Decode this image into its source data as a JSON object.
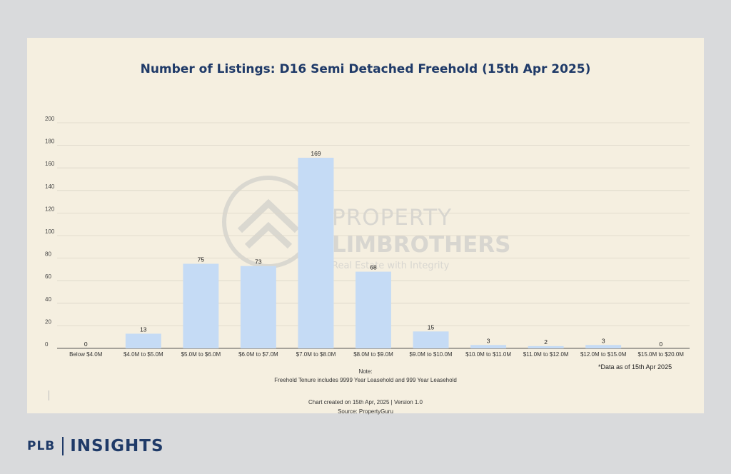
{
  "chart_data": {
    "type": "bar",
    "title": "Number of Listings: D16 Semi Detached Freehold (15th Apr 2025)",
    "categories": [
      "Below $4.0M",
      "$4.0M to $5.0M",
      "$5.0M to $6.0M",
      "$6.0M to $7.0M",
      "$7.0M to $8.0M",
      "$8.0M to $9.0M",
      "$9.0M to $10.0M",
      "$10.0M to $11.0M",
      "$11.0M to $12.0M",
      "$12.0M to $15.0M",
      "$15.0M to $20.0M"
    ],
    "values": [
      0,
      13,
      75,
      73,
      169,
      68,
      15,
      3,
      2,
      3,
      0
    ],
    "ylim": [
      0,
      200
    ],
    "yticks": [
      0,
      20,
      40,
      60,
      80,
      100,
      120,
      140,
      160,
      180,
      200
    ],
    "grid": true,
    "bar_color": "#c5dbf5"
  },
  "annotations": {
    "data_as_of": "*Data as of 15th Apr 2025",
    "note_heading": "Note:",
    "note_text": "Freehold Tenure includes 9999 Year Leasehold and 999 Year Leasehold",
    "created": "Chart created on 15th Apr, 2025 | Version 1.0",
    "source": "Source: PropertyGuru"
  },
  "watermark": {
    "line1": "PROPERTY",
    "line2": "LIMBROTHERS",
    "tagline": "Real Estate with Integrity",
    "icon": "house-roof-icon"
  },
  "brand": {
    "left": "PLB",
    "right": "INSIGHTS"
  },
  "colors": {
    "title": "#1f3a68",
    "background": "#f5efe0",
    "page": "#d9dadc"
  }
}
